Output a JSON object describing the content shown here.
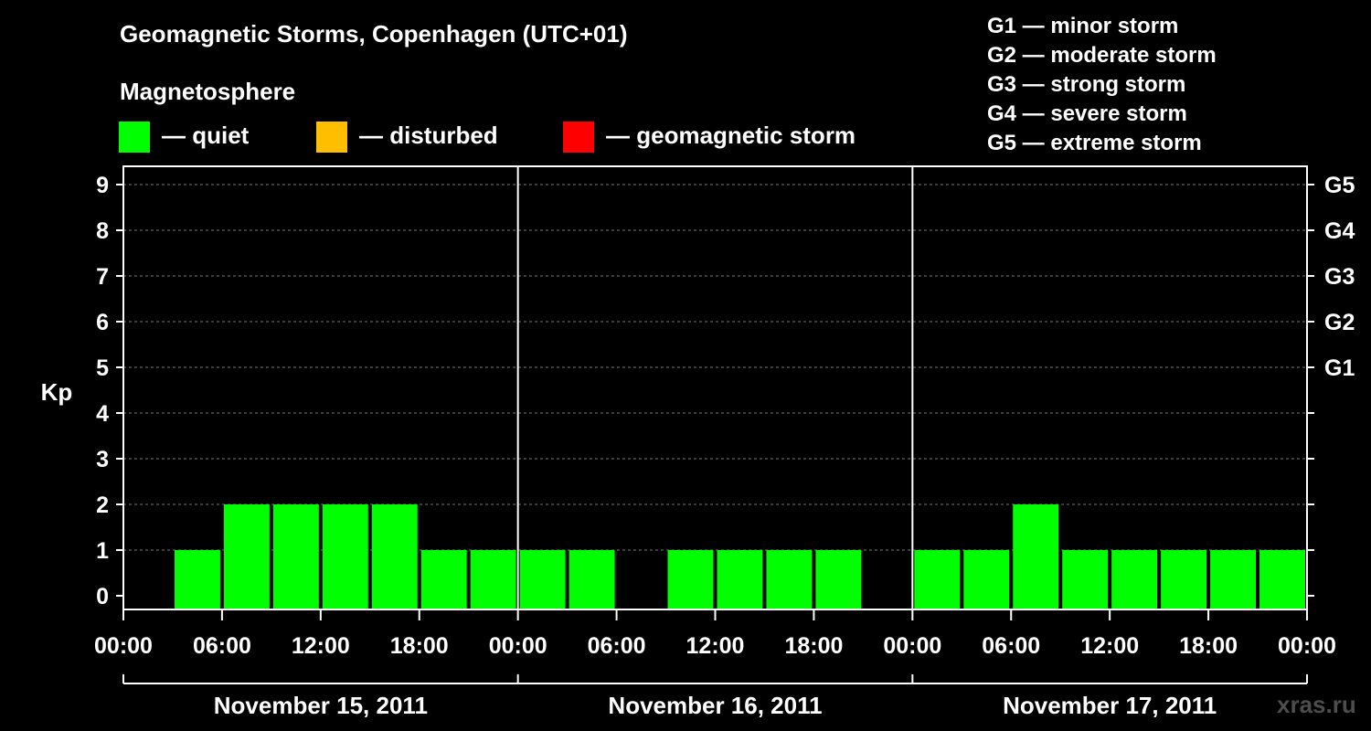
{
  "title": "Geomagnetic Storms, Copenhagen (UTC+01)",
  "legend": {
    "title": "Magnetosphere",
    "items": [
      {
        "label": "— quiet",
        "color": "#00ff00"
      },
      {
        "label": "— disturbed",
        "color": "#ffbf00"
      },
      {
        "label": "— geomagnetic storm",
        "color": "#ff0000"
      }
    ]
  },
  "storm_scale": [
    "G1 — minor storm",
    "G2 — moderate storm",
    "G3 — strong storm",
    "G4 — severe storm",
    "G5 — extreme storm"
  ],
  "watermark": "xras.ru",
  "chart_data": {
    "type": "bar",
    "ylabel": "Kp",
    "ylim": [
      0,
      9.6
    ],
    "yticks": [
      0,
      1,
      2,
      3,
      4,
      5,
      6,
      7,
      8,
      9
    ],
    "right_axis": [
      {
        "kp": 5,
        "label": "G1"
      },
      {
        "kp": 6,
        "label": "G2"
      },
      {
        "kp": 7,
        "label": "G3"
      },
      {
        "kp": 8,
        "label": "G4"
      },
      {
        "kp": 9,
        "label": "G5"
      }
    ],
    "x_tick_labels": [
      "00:00",
      "06:00",
      "12:00",
      "18:00",
      "00:00",
      "06:00",
      "12:00",
      "18:00",
      "00:00",
      "06:00",
      "12:00",
      "18:00",
      "00:00"
    ],
    "days": [
      "November 15, 2011",
      "November 16, 2011",
      "November 17, 2011"
    ],
    "interval_hours": 3,
    "values": [
      null,
      1,
      2,
      2,
      2,
      2,
      1,
      1,
      1,
      1,
      null,
      1,
      1,
      1,
      1,
      null,
      1,
      1,
      2,
      1,
      1,
      1,
      1,
      1
    ],
    "grid": "dashed horizontal"
  }
}
